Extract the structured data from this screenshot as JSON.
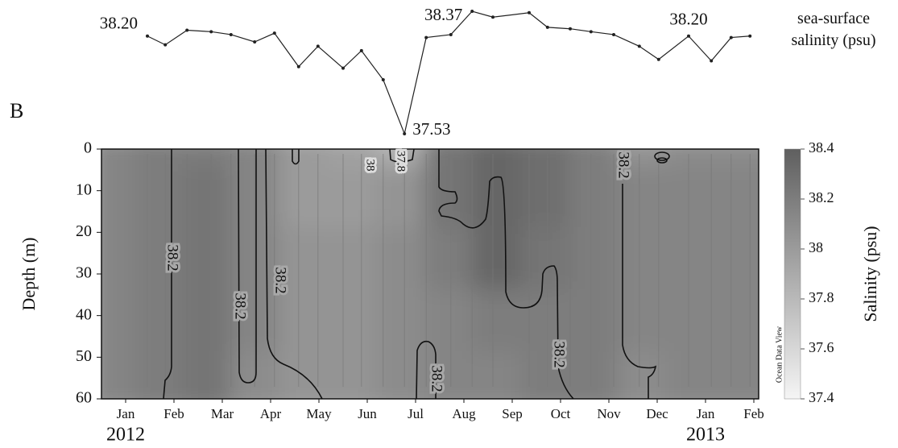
{
  "chart_data": [
    {
      "type": "line",
      "series_label": "sea-surface salinity (psu)",
      "x": [
        0.95,
        1.32,
        1.77,
        2.27,
        2.68,
        3.17,
        3.58,
        4.08,
        4.48,
        5.0,
        5.38,
        5.83,
        6.27,
        6.72,
        7.23,
        7.67,
        8.1,
        8.85,
        9.23,
        9.7,
        10.13,
        10.6,
        11.13,
        11.53,
        12.15,
        12.62,
        13.03,
        13.42
      ],
      "series": [
        {
          "name": "sea-surface salinity",
          "color": "#222222",
          "values": [
            38.2,
            38.14,
            38.24,
            38.23,
            38.21,
            38.16,
            38.22,
            37.99,
            38.13,
            37.98,
            38.1,
            37.9,
            37.53,
            38.19,
            38.21,
            38.37,
            38.33,
            38.36,
            38.26,
            38.25,
            38.23,
            38.21,
            38.13,
            38.04,
            38.2,
            38.03,
            38.19,
            38.2
          ],
          "value_labels": [
            "38.20",
            null,
            null,
            null,
            null,
            null,
            null,
            null,
            null,
            null,
            null,
            null,
            "37.53",
            null,
            null,
            "38.37",
            null,
            null,
            null,
            null,
            null,
            null,
            null,
            null,
            "38.20",
            null,
            null,
            null
          ]
        }
      ]
    },
    {
      "type": "heatmap",
      "panel_label": "B",
      "ylabel": "Depth (m)",
      "colorbar_label": "Salinity (psu)",
      "watermark": "Ocean Data View",
      "xlim": [
        0,
        13.6
      ],
      "xticks": [
        {
          "value": 0.5,
          "label": "Jan"
        },
        {
          "value": 1.5,
          "label": "Feb"
        },
        {
          "value": 2.5,
          "label": "Mar"
        },
        {
          "value": 3.5,
          "label": "Apr"
        },
        {
          "value": 4.5,
          "label": "May"
        },
        {
          "value": 5.5,
          "label": "Jun"
        },
        {
          "value": 6.5,
          "label": "Jul"
        },
        {
          "value": 7.5,
          "label": "Aug"
        },
        {
          "value": 8.5,
          "label": "Sep"
        },
        {
          "value": 9.5,
          "label": "Oct"
        },
        {
          "value": 10.5,
          "label": "Nov"
        },
        {
          "value": 11.5,
          "label": "Dec"
        },
        {
          "value": 12.5,
          "label": "Jan"
        },
        {
          "value": 13.5,
          "label": "Feb"
        }
      ],
      "years": [
        2012,
        2013
      ],
      "ylim": [
        0,
        60
      ],
      "yticks": [
        0,
        10,
        20,
        30,
        40,
        50,
        60
      ],
      "zlim": [
        37.4,
        38.4
      ],
      "zticks": [
        37.4,
        37.6,
        37.8,
        38,
        38.2,
        38.4
      ],
      "x": [
        0.5,
        1.5,
        2.5,
        3.5,
        4.5,
        5.5,
        6.5,
        7.5,
        8.5,
        9.5,
        10.5,
        11.5,
        12.5,
        13.5
      ],
      "depths": [
        0,
        15,
        30,
        45,
        60
      ],
      "z": [
        [
          38.15,
          38.2,
          38.2,
          38.15,
          38.0,
          37.95,
          37.85,
          38.25,
          38.35,
          38.3,
          38.2,
          38.05,
          38.1,
          38.1
        ],
        [
          38.15,
          38.2,
          38.25,
          38.15,
          38.0,
          38.0,
          38.05,
          38.25,
          38.35,
          38.3,
          38.2,
          38.15,
          38.15,
          38.15
        ],
        [
          38.15,
          38.2,
          38.25,
          38.15,
          38.05,
          38.05,
          38.1,
          38.2,
          38.35,
          38.25,
          38.2,
          38.15,
          38.15,
          38.15
        ],
        [
          38.15,
          38.2,
          38.25,
          38.15,
          38.05,
          38.05,
          38.1,
          38.15,
          38.2,
          38.2,
          38.2,
          38.15,
          38.15,
          38.15
        ],
        [
          38.15,
          38.2,
          38.25,
          38.1,
          38.05,
          38.05,
          38.1,
          38.15,
          38.15,
          38.2,
          38.2,
          38.1,
          38.15,
          38.15
        ]
      ],
      "contour_labels": [
        38.2,
        38.2,
        38.2,
        38.2,
        38.2,
        38.2,
        38,
        37.8
      ]
    }
  ]
}
